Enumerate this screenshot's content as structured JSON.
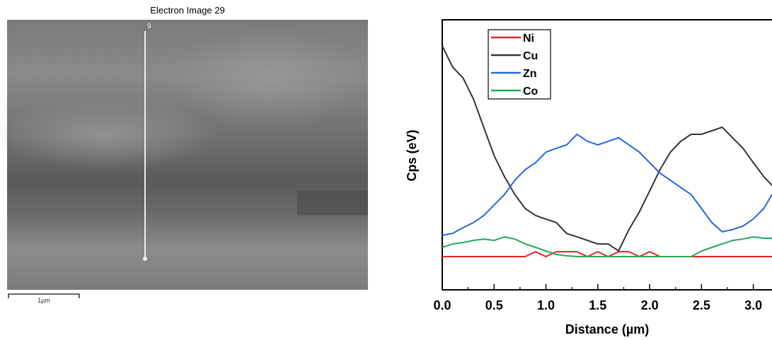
{
  "image": {
    "title": "Electron Image 29",
    "line_label": "9",
    "scale_label": "1µm"
  },
  "chart_data": {
    "type": "line",
    "xlabel": "Distance (µm)",
    "ylabel": "Cps (eV)",
    "x": [
      0,
      0.1,
      0.2,
      0.3,
      0.4,
      0.5,
      0.6,
      0.7,
      0.8,
      0.9,
      1.0,
      1.1,
      1.2,
      1.3,
      1.4,
      1.5,
      1.6,
      1.7,
      1.8,
      1.9,
      2.0,
      2.1,
      2.2,
      2.3,
      2.4,
      2.5,
      2.6,
      2.7,
      2.8,
      2.9,
      3.0,
      3.1,
      3.18
    ],
    "series": [
      {
        "name": "Ni",
        "color": "#ee2222",
        "values": [
          12.3,
          12.3,
          12.3,
          12.3,
          12.3,
          12.3,
          12.3,
          12.3,
          12.3,
          14.1,
          12.3,
          14.1,
          14.1,
          14.1,
          12.3,
          14.1,
          12.3,
          14.1,
          14.1,
          12.3,
          14.1,
          12.3,
          12.3,
          12.3,
          12.3,
          12.3,
          12.3,
          12.3,
          12.3,
          12.3,
          12.3,
          12.3,
          12.3
        ]
      },
      {
        "name": "Cu",
        "color": "#333333",
        "values": [
          90.3,
          82.5,
          78.5,
          70.7,
          60.2,
          49.7,
          41.9,
          35.3,
          30.1,
          27.5,
          26.2,
          24.9,
          20.9,
          19.6,
          18.3,
          17.0,
          17.0,
          14.4,
          22.3,
          28.8,
          36.6,
          44.5,
          51.0,
          55.0,
          57.6,
          57.6,
          58.9,
          60.2,
          56.3,
          52.4,
          47.1,
          41.9,
          38.7
        ]
      },
      {
        "name": "Zn",
        "color": "#2266dd",
        "values": [
          20.2,
          20.9,
          23.0,
          24.9,
          27.5,
          31.4,
          35.3,
          40.6,
          44.5,
          47.1,
          51.0,
          52.4,
          53.7,
          57.6,
          55.0,
          53.7,
          55.0,
          56.3,
          53.7,
          51.0,
          47.1,
          43.2,
          40.6,
          37.9,
          35.3,
          30.1,
          24.9,
          21.5,
          22.3,
          23.6,
          26.2,
          30.1,
          35.3
        ]
      },
      {
        "name": "Co",
        "color": "#22aa55",
        "values": [
          15.7,
          17.0,
          17.5,
          18.3,
          18.8,
          18.3,
          19.6,
          18.8,
          17.0,
          15.7,
          14.4,
          13.1,
          12.6,
          12.3,
          12.3,
          12.3,
          12.3,
          12.3,
          12.3,
          12.3,
          12.3,
          12.3,
          12.3,
          12.3,
          12.3,
          14.4,
          15.7,
          17.0,
          18.3,
          18.8,
          19.6,
          19.1,
          19.1
        ]
      }
    ],
    "xlim": [
      0,
      3.18
    ],
    "ylim": [
      0,
      100
    ],
    "xticks": [
      {
        "value": 0,
        "label": "0.0"
      },
      {
        "value": 0.5,
        "label": "0.5"
      },
      {
        "value": 1,
        "label": "1.0"
      },
      {
        "value": 1.5,
        "label": "1.5"
      },
      {
        "value": 2,
        "label": "2.0"
      },
      {
        "value": 2.5,
        "label": "2.5"
      },
      {
        "value": 3,
        "label": "3.0"
      }
    ],
    "legend": "upper-left",
    "grid": false
  }
}
